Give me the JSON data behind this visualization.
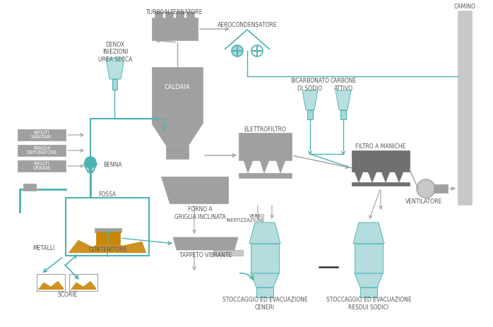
{
  "bg_color": "#ffffff",
  "gray_dark": "#8a8a8a",
  "gray_med": "#a0a0a0",
  "gray_light": "#c8c8c8",
  "teal": "#4db3b3",
  "teal_light": "#a8d8d8",
  "teal_dark": "#2e8a8a",
  "orange": "#c8860a",
  "label_color": "#555555",
  "label_fs": 5.5,
  "labels": {
    "turboalternatore": "TURBOALTERNATORE",
    "aerocondensatore": "AEROCONDENSATORE",
    "denox": "DENOX\nINIEZIONI\nUREA SECCA",
    "caldaia": "CALDAIA",
    "elettrofiltro": "ELETTROFILTRO",
    "bicarbonato": "BICARBONATO\nDI SODIO",
    "carbone": "CARBONE\nATTIVO",
    "filtro_maniche": "FILTRO A MANICHE",
    "ventilatore": "VENTILATORE",
    "camino": "CAMINO",
    "forno": "FORNO A\nGRIGLIA INCLINATA",
    "fossa": "FOSSA",
    "contenitore": "CONTENITORE",
    "tappeto": "TAPPETO VIBRANTE",
    "verso_inert": "VERSO\nINERTIZZAZIONE",
    "stoccaggio_ceneri": "STOCCAGGIO ED EVACUAZIONE\nCENERI",
    "stoccaggio_sodici": "STOCCAGGIO ED EVACUAZIONE\nRESDUI SODICI",
    "metalli": "METALLI",
    "scorie": "SCORIE",
    "benna": "BENNA",
    "rifiuti_sanitari": "RIFIUTI\nSANITARI",
    "fanghi": "FANGHI\nDEPURATORE",
    "rifiuti_urbani": "RIFIUTI\nURBANI"
  }
}
